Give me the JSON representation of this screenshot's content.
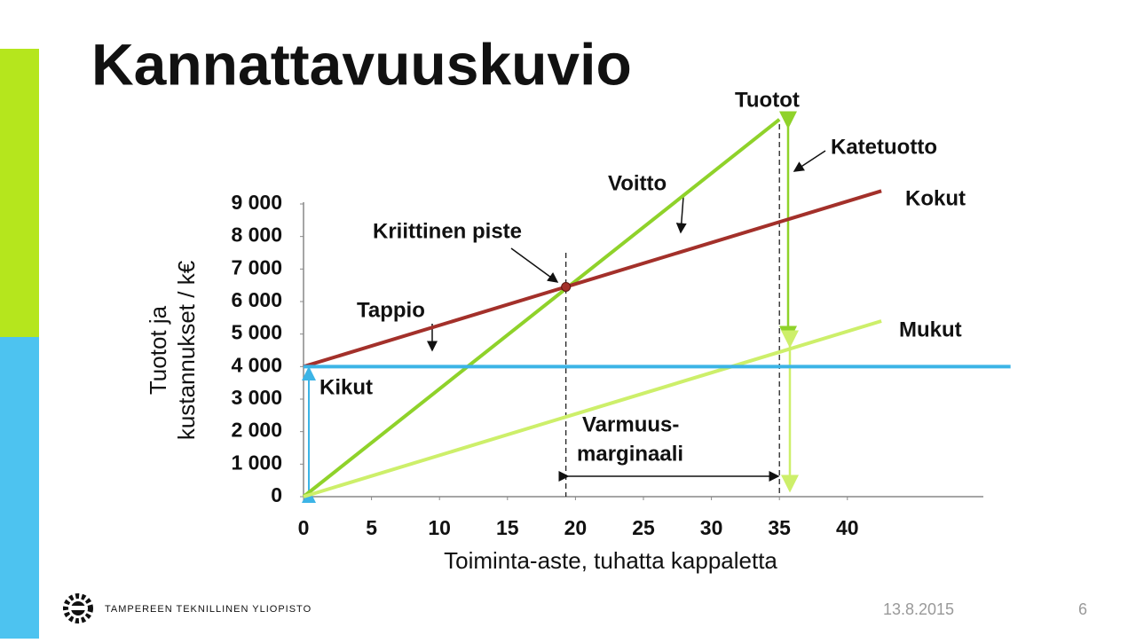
{
  "slide": {
    "title": "Kannattavuuskuvio",
    "organization": "TAMPEREEN TEKNILLINEN YLIOPISTO",
    "date": "13.8.2015",
    "page": "6"
  },
  "chart_data": {
    "type": "line",
    "x_label": "Toiminta-aste, tuhatta kappaletta",
    "y_label": [
      "Tuotot ja",
      "kustannukset / k€"
    ],
    "xlim": [
      0,
      50
    ],
    "ylim": [
      0,
      9000
    ],
    "xticks": [
      0,
      5,
      10,
      15,
      20,
      25,
      30,
      35,
      40
    ],
    "yticks": [
      0,
      {
        "value": 1000,
        "label": "1 000"
      },
      {
        "value": 2000,
        "label": "2 000"
      },
      {
        "value": 3000,
        "label": "3 000"
      },
      {
        "value": 4000,
        "label": "4 000"
      },
      {
        "value": 5000,
        "label": "5 000"
      },
      {
        "value": 6000,
        "label": "6 000"
      },
      {
        "value": 7000,
        "label": "7 000"
      },
      {
        "value": 8000,
        "label": "8 000"
      },
      {
        "value": 9000,
        "label": "9 000"
      }
    ],
    "series": [
      {
        "name": "Tuotot",
        "color": "#8fd22a",
        "x": [
          0,
          35
        ],
        "values": [
          0,
          11600
        ]
      },
      {
        "name": "Kokut",
        "color": "#a3302a",
        "x": [
          0,
          42.5
        ],
        "values": [
          4000,
          9400
        ]
      },
      {
        "name": "Mukut",
        "color": "#cdef6a",
        "x": [
          0,
          42.5
        ],
        "values": [
          0,
          5400
        ]
      },
      {
        "name": "Kikut",
        "color": "#3cb4e6",
        "x": [
          0,
          52
        ],
        "values": [
          4000,
          4000
        ]
      }
    ],
    "break_even": {
      "label": "Kriittinen piste",
      "x": 19.3,
      "y": 6450
    },
    "margin": {
      "label": [
        "Varmuus-",
        "marginaali"
      ],
      "x": [
        19.3,
        35
      ]
    },
    "annotations": {
      "profit": "Voitto",
      "loss": "Tappio",
      "contribution": "Katetuotto"
    }
  }
}
